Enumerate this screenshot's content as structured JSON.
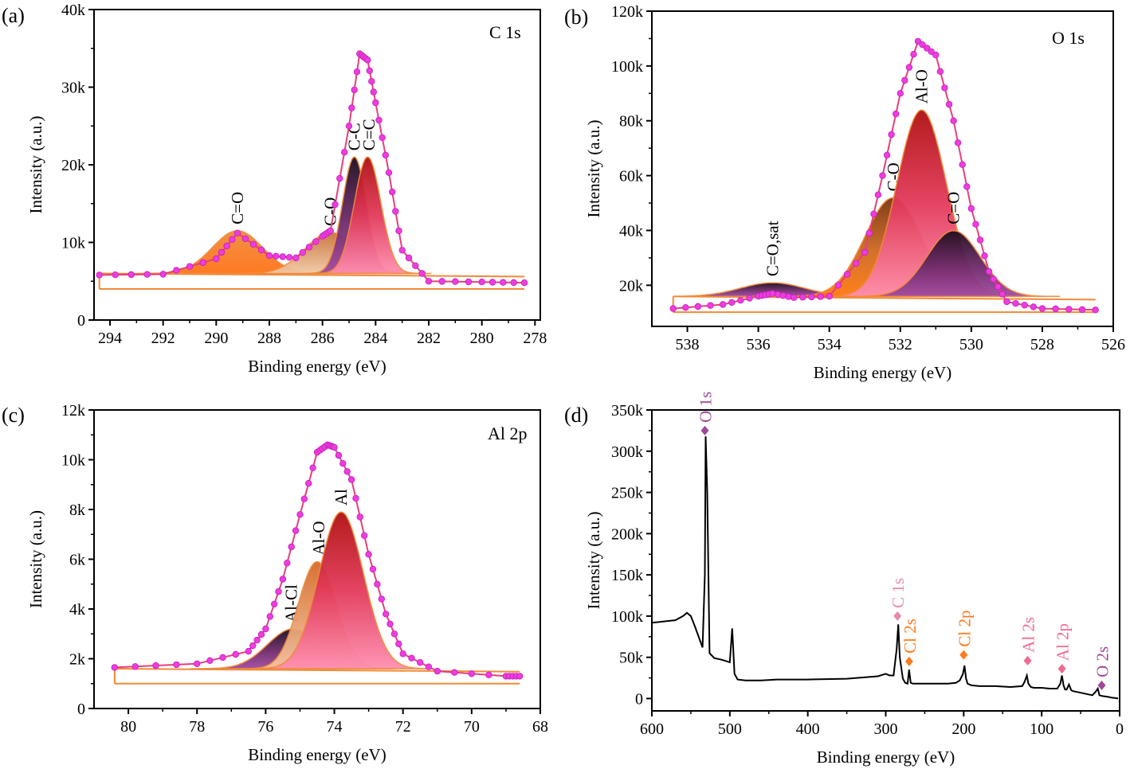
{
  "chart_data": [
    {
      "panel": "(a)",
      "type": "line",
      "title": "C 1s",
      "xlabel": "Binding energy (eV)",
      "ylabel": "Intensity (a.u.)",
      "xlim": [
        294.6,
        277.8
      ],
      "ylim": [
        0,
        40000
      ],
      "x_ticks": [
        "294",
        "292",
        "290",
        "288",
        "286",
        "284",
        "282",
        "280",
        "278"
      ],
      "y_ticks": [
        "0",
        "10k",
        "20k",
        "30k",
        "40k"
      ],
      "background_offset": 4000,
      "peaks": [
        {
          "label": "C=O",
          "center": 289.2,
          "height": 5500,
          "width": 0.95,
          "label_x": 289.2
        },
        {
          "label": "C-O",
          "center": 285.7,
          "height": 5300,
          "width": 0.95,
          "label_x": 285.7
        },
        {
          "label": "C-C",
          "center": 284.8,
          "height": 15000,
          "width": 0.45,
          "label_x": 284.8
        },
        {
          "label": "C=C",
          "center": 284.3,
          "height": 15000,
          "width": 0.5,
          "label_x": 284.25
        }
      ],
      "series": [
        {
          "name": "",
          "x": [
            294.4,
            292,
            290,
            289.2,
            288,
            287,
            286,
            285.7,
            285,
            284.6,
            284.3,
            284,
            283.5,
            283,
            282,
            280,
            278.4
          ],
          "y": [
            5800,
            5900,
            7900,
            11200,
            8300,
            8000,
            10800,
            11500,
            25000,
            34300,
            33500,
            28000,
            19000,
            9000,
            5000,
            4900,
            4800
          ]
        }
      ]
    },
    {
      "panel": "(b)",
      "type": "line",
      "title": "O 1s",
      "xlabel": "Binding energy (eV)",
      "ylabel": "Intensity (a.u.)",
      "xlim": [
        539,
        526
      ],
      "ylim": [
        5000,
        120000
      ],
      "x_ticks": [
        "538",
        "536",
        "534",
        "532",
        "530",
        "528",
        "526"
      ],
      "y_ticks": [
        "20k",
        "40k",
        "60k",
        "80k",
        "100k",
        "120k"
      ],
      "peaks": [
        {
          "label": "C=O,sat",
          "center": 535.6,
          "height": 5000,
          "width": 0.9,
          "label_x": 535.6
        },
        {
          "label": "C-O",
          "center": 532.2,
          "height": 36000,
          "width": 0.8,
          "label_x": 532.2
        },
        {
          "label": "Al-O",
          "center": 531.4,
          "height": 68000,
          "width": 0.7,
          "label_x": 531.4
        },
        {
          "label": "C=O",
          "center": 530.5,
          "height": 24000,
          "width": 0.75,
          "label_x": 530.5
        }
      ],
      "series": [
        {
          "name": "",
          "x": [
            538.4,
            537,
            536,
            535.6,
            535,
            534,
            533,
            532.5,
            532,
            531.5,
            531,
            530.5,
            530,
            529.5,
            529,
            528,
            526.5
          ],
          "y": [
            11500,
            13000,
            16000,
            17000,
            15500,
            16000,
            32000,
            60000,
            90000,
            109000,
            104000,
            80000,
            48000,
            25000,
            14000,
            11500,
            11000
          ]
        }
      ]
    },
    {
      "panel": "(c)",
      "type": "line",
      "title": "Al 2p",
      "xlabel": "Binding energy (eV)",
      "ylabel": "Intensity (a.u.)",
      "xlim": [
        81,
        68
      ],
      "ylim": [
        0,
        12000
      ],
      "x_ticks": [
        "80",
        "78",
        "76",
        "74",
        "72",
        "70",
        "68"
      ],
      "y_ticks": [
        "0",
        "2k",
        "4k",
        "6k",
        "8k",
        "10k",
        "12k"
      ],
      "background_offset": 1000,
      "peaks": [
        {
          "label": "Al-Cl",
          "center": 75.2,
          "height": 1600,
          "width": 0.75,
          "label_x": 75.25
        },
        {
          "label": "Al-O",
          "center": 74.5,
          "height": 4300,
          "width": 0.55,
          "label_x": 74.45
        },
        {
          "label": "Al",
          "center": 73.8,
          "height": 6300,
          "width": 0.65,
          "label_x": 73.8
        }
      ],
      "series": [
        {
          "name": "",
          "x": [
            80.4,
            78,
            76.5,
            76,
            75.5,
            75,
            74.5,
            74.2,
            74,
            73.5,
            73,
            72.5,
            72,
            71,
            69,
            68.6
          ],
          "y": [
            1650,
            1800,
            2300,
            3200,
            5200,
            7800,
            10300,
            10600,
            10500,
            9200,
            6200,
            3800,
            2200,
            1500,
            1300,
            1300
          ]
        }
      ]
    },
    {
      "panel": "(d)",
      "type": "line",
      "title": "",
      "xlabel": "Binding energy (eV)",
      "ylabel": "Intensity (a.u.)",
      "xlim": [
        600,
        0
      ],
      "ylim": [
        -15000,
        350000
      ],
      "x_ticks": [
        "600",
        "500",
        "400",
        "300",
        "200",
        "100",
        "0"
      ],
      "y_ticks": [
        "0",
        "50k",
        "100k",
        "150k",
        "200k",
        "250k",
        "300k",
        "350k"
      ],
      "series": [
        {
          "name": "",
          "x": [
            600,
            590,
            580,
            570,
            560,
            555,
            550,
            545,
            540,
            535,
            532,
            531,
            529,
            526,
            520,
            510,
            500,
            497,
            494,
            490,
            480,
            460,
            440,
            400,
            350,
            310,
            300,
            295,
            290,
            286,
            284,
            282,
            278,
            275,
            272,
            270,
            268,
            265,
            260,
            240,
            220,
            210,
            205,
            201,
            199,
            197,
            195,
            190,
            180,
            160,
            140,
            125,
            122,
            119,
            117,
            114,
            110,
            100,
            90,
            80,
            76,
            74,
            72,
            70,
            68,
            65,
            62,
            60,
            55,
            50,
            40,
            35,
            31,
            28,
            26,
            22,
            15,
            10,
            5,
            2
          ],
          "y": [
            92000,
            93000,
            94000,
            95000,
            100000,
            104000,
            100000,
            88000,
            75000,
            62000,
            150000,
            318000,
            250000,
            55000,
            49000,
            47000,
            44000,
            85000,
            30000,
            23000,
            22000,
            22000,
            23000,
            23000,
            24000,
            27000,
            30000,
            28000,
            28000,
            60000,
            90000,
            50000,
            24000,
            19000,
            18000,
            35000,
            19000,
            18000,
            18000,
            18000,
            18000,
            19000,
            22000,
            30000,
            40000,
            24000,
            18000,
            16000,
            15000,
            15000,
            14000,
            15000,
            20000,
            28000,
            18000,
            14000,
            13000,
            13000,
            12000,
            12000,
            18000,
            28000,
            16000,
            11000,
            11000,
            17000,
            10000,
            9000,
            8000,
            7000,
            5000,
            4000,
            8000,
            12000,
            4000,
            3000,
            2000,
            1000,
            500,
            0
          ]
        }
      ],
      "markers": [
        {
          "label": "O 1s",
          "x": 532,
          "y": 325000,
          "color": "#9C4A96"
        },
        {
          "label": "C 1s",
          "x": 285,
          "y": 100000,
          "color": "#E68AB0"
        },
        {
          "label": "Cl 2s",
          "x": 270,
          "y": 45000,
          "color": "#FF7A1A"
        },
        {
          "label": "Cl 2p",
          "x": 200,
          "y": 53000,
          "color": "#FF7A1A"
        },
        {
          "label": "Al 2s",
          "x": 118,
          "y": 46000,
          "color": "#F06A8C"
        },
        {
          "label": "Al 2p",
          "x": 74,
          "y": 36000,
          "color": "#F06A8C"
        },
        {
          "label": "O 2s",
          "x": 23,
          "y": 16000,
          "color": "#9C4A96"
        }
      ]
    }
  ]
}
